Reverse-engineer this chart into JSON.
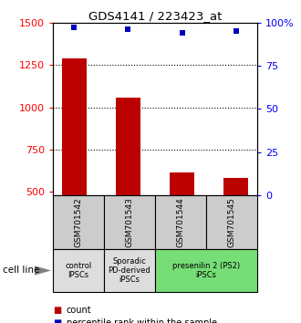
{
  "title": "GDS4141 / 223423_at",
  "samples": [
    "GSM701542",
    "GSM701543",
    "GSM701544",
    "GSM701545"
  ],
  "counts": [
    1290,
    1055,
    615,
    585
  ],
  "percentiles": [
    97,
    96,
    94,
    95
  ],
  "ylim_left": [
    480,
    1500
  ],
  "ylim_right": [
    0,
    100
  ],
  "yticks_left": [
    500,
    750,
    1000,
    1250,
    1500
  ],
  "yticks_right": [
    0,
    25,
    50,
    75,
    100
  ],
  "ytick_right_labels": [
    "0",
    "25",
    "50",
    "75",
    "100%"
  ],
  "bar_color": "#bb0000",
  "dot_color": "#0000bb",
  "cell_line_groups": [
    {
      "label": "control\nIPSCs",
      "cols": [
        0
      ],
      "color": "#dddddd"
    },
    {
      "label": "Sporadic\nPD-derived\niPSCs",
      "cols": [
        1
      ],
      "color": "#dddddd"
    },
    {
      "label": "presenilin 2 (PS2)\niPSCs",
      "cols": [
        2,
        3
      ],
      "color": "#77dd77"
    }
  ],
  "sample_box_color": "#cccccc",
  "legend_count_color": "#bb0000",
  "legend_percentile_color": "#0000bb",
  "cell_line_label": "cell line",
  "count_label": "count",
  "percentile_label": "percentile rank within the sample"
}
